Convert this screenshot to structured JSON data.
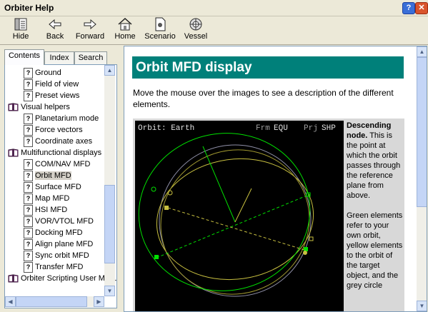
{
  "window": {
    "title": "Orbiter Help"
  },
  "toolbar": {
    "hide": "Hide",
    "back": "Back",
    "forward": "Forward",
    "home": "Home",
    "scenario": "Scenario",
    "vessel": "Vessel"
  },
  "tabs": [
    {
      "label": "Contents",
      "accel": "C",
      "rest": "ontents"
    },
    {
      "label": "Index",
      "accel": "n",
      "pre": "I",
      "rest": "dex"
    },
    {
      "label": "Search",
      "accel": "S",
      "rest": "earch"
    }
  ],
  "tree": [
    {
      "label": "Ground",
      "type": "page"
    },
    {
      "label": "Field of view",
      "type": "page"
    },
    {
      "label": "Preset views",
      "type": "page"
    },
    {
      "label": "Visual helpers",
      "type": "book"
    },
    {
      "label": "Planetarium mode",
      "type": "page"
    },
    {
      "label": "Force vectors",
      "type": "page"
    },
    {
      "label": "Coordinate axes",
      "type": "page"
    },
    {
      "label": "Multifunctional displays",
      "type": "book"
    },
    {
      "label": "COM/NAV MFD",
      "type": "page"
    },
    {
      "label": "Orbit MFD",
      "type": "page",
      "selected": true
    },
    {
      "label": "Surface MFD",
      "type": "page"
    },
    {
      "label": "Map MFD",
      "type": "page"
    },
    {
      "label": "HSI MFD",
      "type": "page"
    },
    {
      "label": "VOR/VTOL MFD",
      "type": "page"
    },
    {
      "label": "Docking MFD",
      "type": "page"
    },
    {
      "label": "Align plane MFD",
      "type": "page"
    },
    {
      "label": "Sync orbit MFD",
      "type": "page"
    },
    {
      "label": "Transfer MFD",
      "type": "page"
    },
    {
      "label": "Orbiter Scripting User Manual",
      "type": "book"
    }
  ],
  "content": {
    "heading": "Orbit MFD display",
    "intro": "Move the mouse over the images to see a description of the different elements.",
    "mfd": {
      "title": "Orbit: Earth",
      "frm_label": "Frm",
      "frm_value": "EQU",
      "prj_label": "Prj",
      "prj_value": "SHP"
    },
    "description": {
      "bold": "Descending node.",
      "text1": " This is the point at which the orbit passes through the reference plane from above.",
      "text2": "Green elements refer to your own orbit, yellow elements to the orbit of the target object, and the grey circle"
    }
  },
  "colors": {
    "heading_bg": "#00807a",
    "own_orbit": "#00e000",
    "target_orbit": "#c8c040",
    "reference": "#9090a8"
  }
}
